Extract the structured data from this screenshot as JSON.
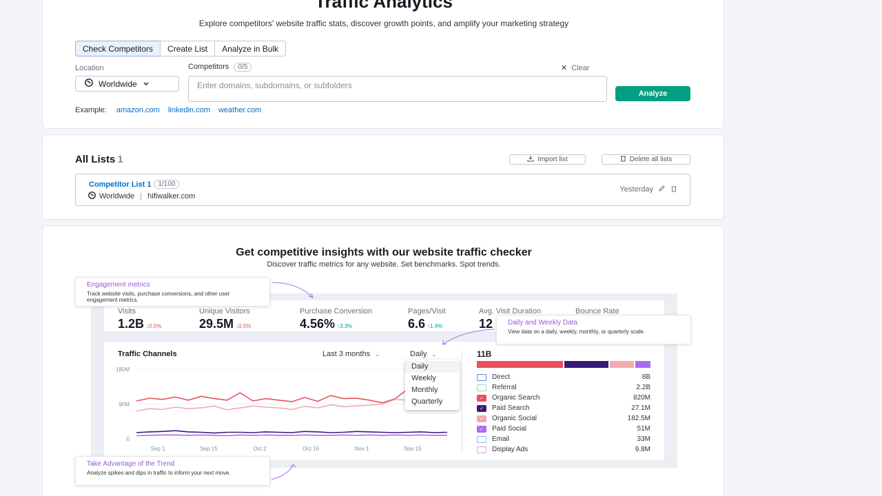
{
  "header": {
    "title": "Traffic Analytics",
    "subtitle": "Explore competitors' website traffic stats, discover growth points, and amplify your marketing strategy"
  },
  "tabs": [
    {
      "label": "Check Competitors",
      "active": true
    },
    {
      "label": "Create List",
      "active": false
    },
    {
      "label": "Analyze in Bulk",
      "active": false
    }
  ],
  "search": {
    "location_label": "Location",
    "location_value": "Worldwide",
    "competitors_label": "Competitors",
    "competitors_count": "0/5",
    "clear_label": "Clear",
    "placeholder": "Enter domains, subdomains, or subfolders",
    "value": "",
    "analyze_label": "Analyze",
    "example_label": "Example:",
    "examples": [
      "amazon.com",
      "linkedin.com",
      "weather.com"
    ]
  },
  "lists": {
    "title": "All Lists",
    "count": "1",
    "import_label": "Import list",
    "delete_label": "Delete all lists",
    "items": [
      {
        "name": "Competitor List 1",
        "count": "1/100",
        "location": "Worldwide",
        "domain": "hifiwalker.com",
        "date": "Yesterday"
      }
    ]
  },
  "promo": {
    "title": "Get competitive insights with our website traffic checker",
    "subtitle": "Discover traffic metrics for any website. Set benchmarks. Spot trends.",
    "callouts": {
      "engagement": {
        "title": "Engagement metrics",
        "desc": "Track website visits, purchase conversions, and other user engagement metrics."
      },
      "daily": {
        "title": "Daily and Weekly Data",
        "desc": "View data on a daily, weekly, monthly, or quarterly scale."
      },
      "trend": {
        "title": "Take Advantage of the Trend",
        "desc": "Analyze spikes and dips in traffic to inform your next move."
      }
    },
    "metrics": [
      {
        "label": "Visits",
        "value": "1.2B",
        "delta": "0.5%",
        "dir": "down"
      },
      {
        "label": "Unique Visitors",
        "value": "29.5M",
        "delta": "0.5%",
        "dir": "down"
      },
      {
        "label": "Purchase Conversion",
        "value": "4.56%",
        "delta": "3.3%",
        "dir": "up"
      },
      {
        "label": "Pages/Visit",
        "value": "6.6",
        "delta": "1.4%",
        "dir": "up"
      },
      {
        "label": "Avg. Visit Duration",
        "value": "12",
        "delta": "",
        "dir": ""
      },
      {
        "label": "Bounce Rate",
        "value": "",
        "delta": "",
        "dir": ""
      }
    ],
    "traffic_channels": {
      "title": "Traffic Channels",
      "range_label": "Last 3 months",
      "granularity_label": "Daily",
      "dropdown_options": [
        "Daily",
        "Weekly",
        "Monthly",
        "Quarterly"
      ],
      "total": "11B",
      "channels": [
        {
          "name": "Direct",
          "value": "8B",
          "color": "#4d8fd6",
          "checked": false
        },
        {
          "name": "Referral",
          "value": "2.2B",
          "color": "#9bd4a0",
          "checked": false
        },
        {
          "name": "Organic Search",
          "value": "820M",
          "color": "#e8505b",
          "checked": true
        },
        {
          "name": "Paid Search",
          "value": "27.1M",
          "color": "#3a1a78",
          "checked": true
        },
        {
          "name": "Organic Social",
          "value": "182.5M",
          "color": "#f4a9b1",
          "checked": true
        },
        {
          "name": "Paid Social",
          "value": "51M",
          "color": "#a96ef0",
          "checked": true
        },
        {
          "name": "Email",
          "value": "33M",
          "color": "#7fc4e8",
          "checked": false
        },
        {
          "name": "Display Ads",
          "value": "9.8M",
          "color": "#e69ad6",
          "checked": false
        }
      ],
      "stack_shares": [
        {
          "color": "#e8505b",
          "share": 0.51
        },
        {
          "color": "#3a1a78",
          "share": 0.26
        },
        {
          "color": "#f4a9b1",
          "share": 0.14
        },
        {
          "color": "#a96ef0",
          "share": 0.09
        }
      ]
    }
  },
  "chart_data": {
    "type": "line",
    "title": "Traffic Channels",
    "xlabel": "",
    "ylabel": "",
    "y_ticks": [
      "180M",
      "90M",
      "0"
    ],
    "ylim": [
      0,
      180
    ],
    "x_ticks": [
      "Sep 1",
      "Sep 15",
      "Oct 2",
      "Oct 16",
      "Nov 1",
      "Nov 15"
    ],
    "x": [
      0,
      1,
      2,
      3,
      4,
      5,
      6,
      7,
      8,
      9,
      10,
      11,
      12,
      13,
      14,
      15,
      16,
      17,
      18,
      19,
      20,
      21,
      22,
      23,
      24
    ],
    "series": [
      {
        "name": "Organic Search",
        "color": "#e8505b",
        "values": [
          98,
          105,
          102,
          108,
          100,
          110,
          104,
          100,
          119,
          98,
          104,
          100,
          96,
          107,
          97,
          112,
          104,
          105,
          100,
          93,
          104,
          130,
          116,
          110,
          112
        ]
      },
      {
        "name": "Organic Social",
        "color": "#f4a9b1",
        "values": [
          72,
          78,
          76,
          82,
          78,
          80,
          85,
          75,
          80,
          85,
          82,
          80,
          76,
          84,
          80,
          88,
          83,
          85,
          87,
          90,
          102,
          100,
          96,
          95,
          98
        ]
      },
      {
        "name": "Paid Search",
        "color": "#3a1a78",
        "values": [
          16,
          18,
          19,
          21,
          18,
          17,
          15,
          17,
          17,
          16,
          18,
          17,
          16,
          19,
          18,
          16,
          17,
          19,
          18,
          17,
          16,
          17,
          18,
          16,
          17
        ]
      },
      {
        "name": "Paid Social",
        "color": "#a96ef0",
        "values": [
          8,
          9,
          10,
          10,
          9,
          10,
          9,
          8,
          10,
          9,
          10,
          9,
          9,
          10,
          9,
          9,
          10,
          9,
          10,
          9,
          10,
          9,
          10,
          9,
          9
        ]
      }
    ]
  }
}
